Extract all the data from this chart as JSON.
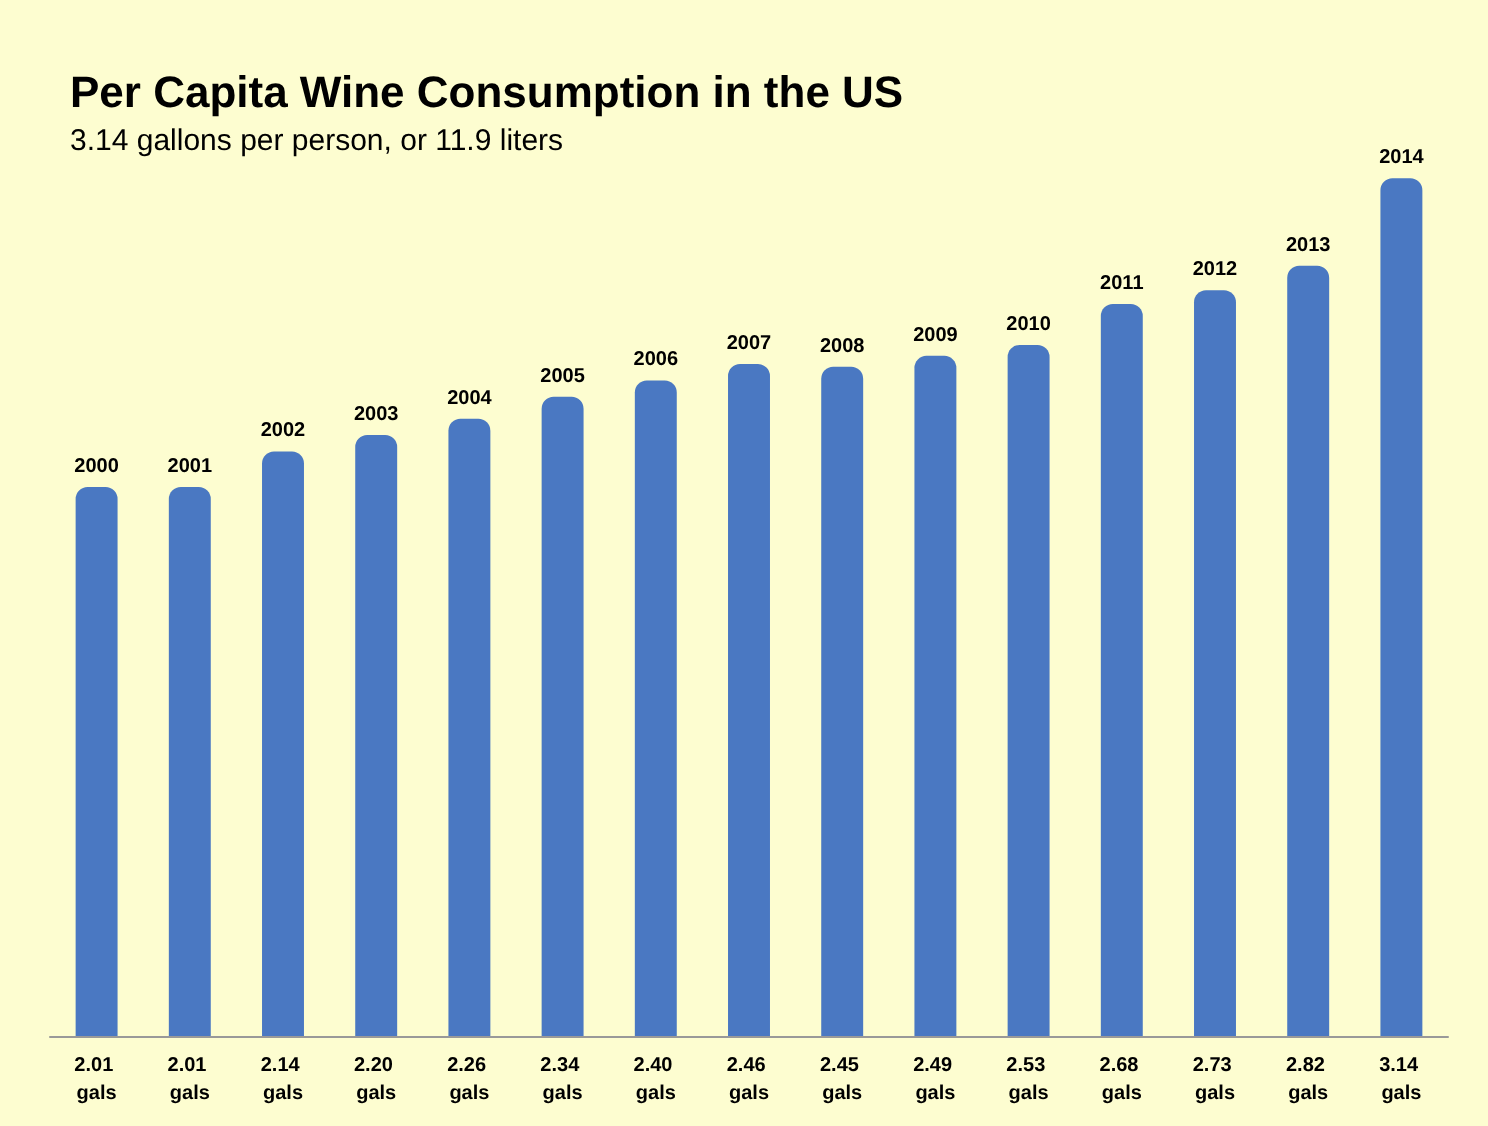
{
  "chart_data": {
    "type": "bar",
    "title": "Per Capita Wine Consumption in the US",
    "subtitle": "3.14 gallons per person, or 11.9 liters",
    "categories": [
      "2000",
      "2001",
      "2002",
      "2003",
      "2004",
      "2005",
      "2006",
      "2007",
      "2008",
      "2009",
      "2010",
      "2011",
      "2012",
      "2013",
      "2014"
    ],
    "values": [
      2.01,
      2.01,
      2.14,
      2.2,
      2.26,
      2.34,
      2.4,
      2.46,
      2.45,
      2.49,
      2.53,
      2.68,
      2.73,
      2.82,
      3.14
    ],
    "value_labels": [
      "2.01 gals",
      "2.01 gals",
      "2.14 gals",
      "2.20 gals",
      "2.26 gals",
      "2.34 gals",
      "2.40 gals",
      "2.46 gals",
      "2.45 gals",
      "2.49 gals",
      "2.53 gals",
      "2.68 gals",
      "2.73 gals",
      "2.82 gals",
      "3.14 gals"
    ],
    "color": "#4a78c2"
  }
}
